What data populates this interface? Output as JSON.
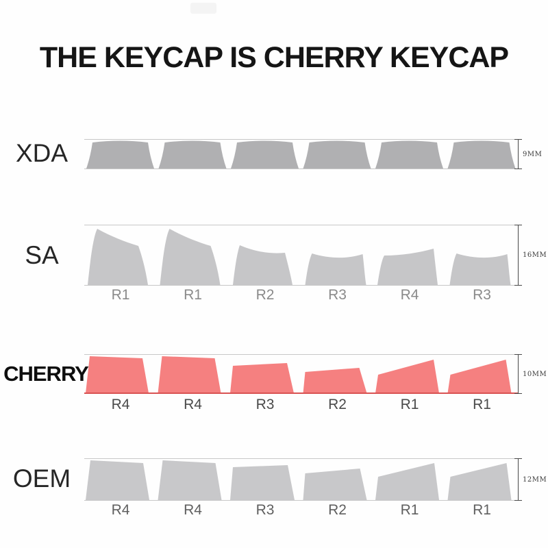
{
  "title": "THE KEYCAP IS CHERRY KEYCAP",
  "colors": {
    "xda_cap": "#b0b0b2",
    "sa_cap": "#c6c6c8",
    "cherry_cap": "#f58080",
    "oem_cap": "#c8c8ca",
    "guide_line": "#c7c7c7",
    "cherry_baseline": "#d95252",
    "dimension": "#474747"
  },
  "rows": [
    {
      "id": "xda",
      "profile": "XDA",
      "height_label": "9MM",
      "cap_color": "xda_cap",
      "baseline": "gray",
      "caps": [
        {
          "shape": "XDA",
          "label": ""
        },
        {
          "shape": "XDA",
          "label": ""
        },
        {
          "shape": "XDA",
          "label": ""
        },
        {
          "shape": "XDA",
          "label": ""
        },
        {
          "shape": "XDA",
          "label": ""
        },
        {
          "shape": "XDA",
          "label": ""
        }
      ]
    },
    {
      "id": "sa",
      "profile": "SA",
      "height_label": "16MM",
      "cap_color": "sa_cap",
      "baseline": "gray",
      "caps": [
        {
          "shape": "R1",
          "label": "R1"
        },
        {
          "shape": "R1",
          "label": "R1"
        },
        {
          "shape": "R2",
          "label": "R2"
        },
        {
          "shape": "R3",
          "label": "R3"
        },
        {
          "shape": "R4",
          "label": "R4"
        },
        {
          "shape": "R3",
          "label": "R3"
        }
      ]
    },
    {
      "id": "cherry",
      "profile": "CHERRY",
      "height_label": "10MM",
      "cap_color": "cherry_cap",
      "baseline": "red",
      "caps": [
        {
          "shape": "R4",
          "label": "R4"
        },
        {
          "shape": "R4",
          "label": "R4"
        },
        {
          "shape": "R3",
          "label": "R3"
        },
        {
          "shape": "R2",
          "label": "R2"
        },
        {
          "shape": "R1",
          "label": "R1"
        },
        {
          "shape": "R1",
          "label": "R1"
        }
      ]
    },
    {
      "id": "oem",
      "profile": "OEM",
      "height_label": "12MM",
      "cap_color": "oem_cap",
      "baseline": "gray",
      "caps": [
        {
          "shape": "R4",
          "label": "R4"
        },
        {
          "shape": "R4",
          "label": "R4"
        },
        {
          "shape": "R3",
          "label": "R3"
        },
        {
          "shape": "R2",
          "label": "R2"
        },
        {
          "shape": "R1",
          "label": "R1"
        },
        {
          "shape": "R1",
          "label": "R1"
        }
      ]
    }
  ]
}
